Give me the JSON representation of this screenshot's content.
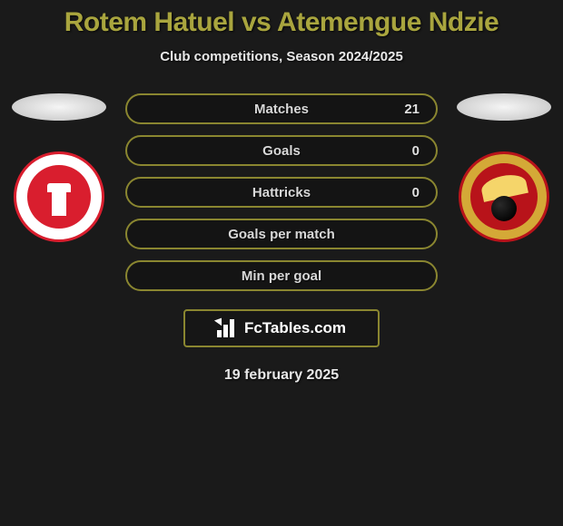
{
  "title": "Rotem Hatuel vs Atemengue Ndzie",
  "subtitle": "Club competitions, Season 2024/2025",
  "date": "19 february 2025",
  "logo_text": "FcTables.com",
  "colors": {
    "accent": "#a9a53e",
    "border": "#8a8630",
    "badge_left_primary": "#d91e2e",
    "badge_right_primary": "#b8131a",
    "badge_right_secondary": "#d4a937"
  },
  "stats": [
    {
      "label": "Matches",
      "value_right": "21"
    },
    {
      "label": "Goals",
      "value_right": "0"
    },
    {
      "label": "Hattricks",
      "value_right": "0"
    },
    {
      "label": "Goals per match",
      "value_right": ""
    },
    {
      "label": "Min per goal",
      "value_right": ""
    }
  ]
}
